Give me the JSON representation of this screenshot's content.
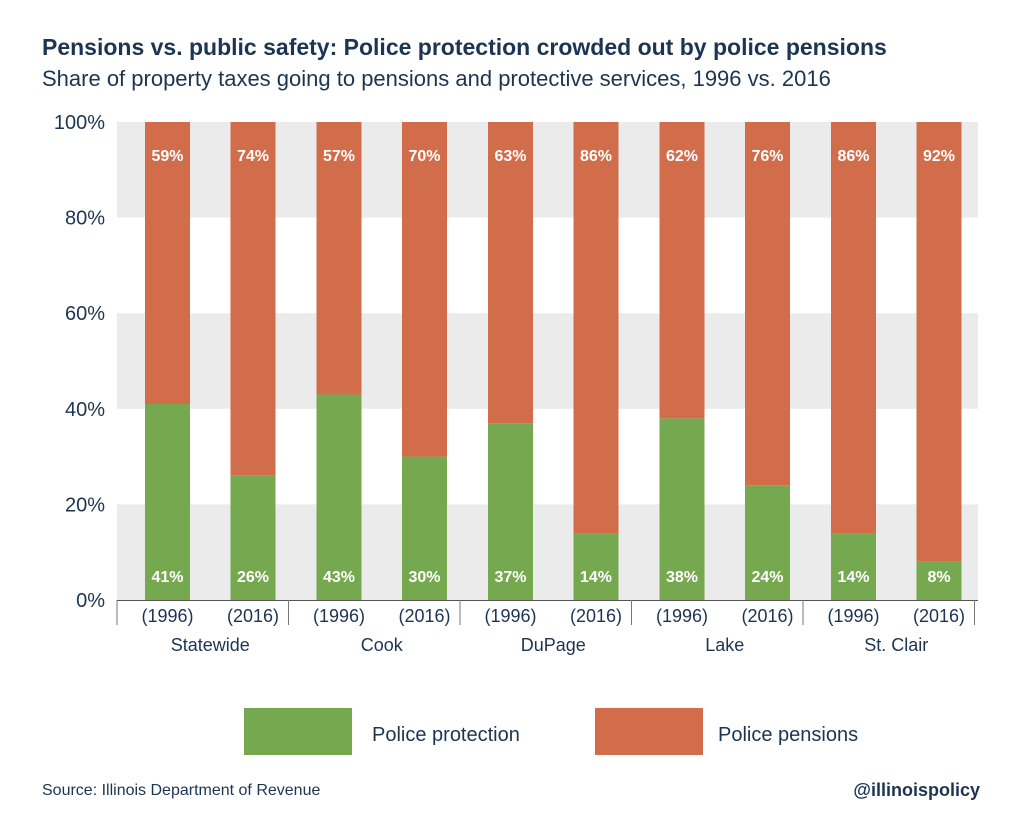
{
  "title": "Pensions vs. public safety: Police protection crowded out by police pensions",
  "subtitle": "Share of property taxes going to pensions and protective services, 1996 vs. 2016",
  "source": "Source: Illinois Department of Revenue",
  "handle": "@illinoispolicy",
  "colors": {
    "protection": "#76a84f",
    "pensions": "#d16d4b",
    "band": "#ebebeb",
    "text": "#1c3552"
  },
  "chart_data": {
    "type": "bar",
    "stacked": true,
    "percent": true,
    "y_ticks": [
      "0%",
      "20%",
      "40%",
      "60%",
      "80%",
      "100%"
    ],
    "ylim": [
      0,
      100
    ],
    "groups": [
      "Statewide",
      "Cook",
      "DuPage",
      "Lake",
      "St. Clair"
    ],
    "years": [
      "(1996)",
      "(2016)"
    ],
    "series": [
      {
        "name": "Police protection",
        "color": "#76a84f",
        "values": [
          [
            41,
            26
          ],
          [
            43,
            30
          ],
          [
            37,
            14
          ],
          [
            38,
            24
          ],
          [
            14,
            8
          ]
        ]
      },
      {
        "name": "Police pensions",
        "color": "#d16d4b",
        "values": [
          [
            59,
            74
          ],
          [
            57,
            70
          ],
          [
            63,
            86
          ],
          [
            62,
            76
          ],
          [
            86,
            92
          ]
        ]
      }
    ],
    "legend": [
      "Police protection",
      "Police pensions"
    ]
  }
}
